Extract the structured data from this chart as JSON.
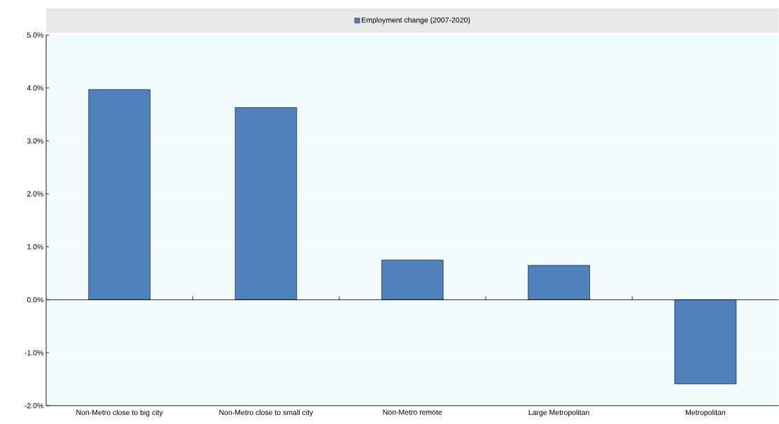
{
  "chart_data": {
    "type": "bar",
    "categories": [
      "Non-Metro close to big city",
      "Non-Metro close to small city",
      "Non-Metro remote",
      "Large Metropolitan",
      "Metropolitan"
    ],
    "series": [
      {
        "name": "Employment change (2007-2020)",
        "color": "#4f81bd",
        "values": [
          3.97,
          3.63,
          0.75,
          0.65,
          -1.59
        ]
      }
    ],
    "ylim": [
      -2,
      5
    ],
    "yticks": [
      {
        "value": -2,
        "label": "-2.0%"
      },
      {
        "value": -1,
        "label": "-1.0%"
      },
      {
        "value": 0,
        "label": "0.0%"
      },
      {
        "value": 1,
        "label": "1.0%"
      },
      {
        "value": 2,
        "label": "2.0%"
      },
      {
        "value": 3,
        "label": "3.0%"
      },
      {
        "value": 4,
        "label": "4.0%"
      },
      {
        "value": 5,
        "label": "5.0%"
      }
    ],
    "grid": "y",
    "legend": "top"
  }
}
